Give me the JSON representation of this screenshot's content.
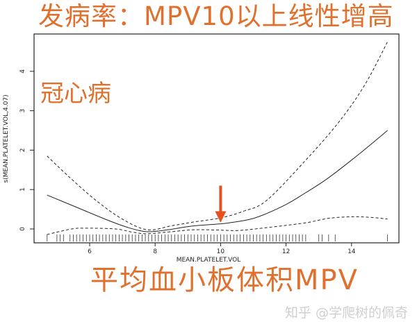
{
  "overlay": {
    "title": "发病率：MPV10以上线性增高",
    "y_note": "冠心病",
    "x_note": "平均血小板体积MPV",
    "watermark": "知乎 @学爬树的佩奇",
    "accent_color": "#E0702E",
    "arrow_color": "#E8501E",
    "arrow_at_x": 10
  },
  "chart_data": {
    "type": "line",
    "title": "",
    "xlabel": "MEAN.PLATELET.VOL",
    "ylabel": "s(MEAN.PLATELET.VOL,4.07)",
    "xlim": [
      4.4,
      15.6
    ],
    "ylim": [
      -0.35,
      4.95
    ],
    "xticks": [
      6,
      8,
      10,
      12,
      14
    ],
    "yticks": [
      0,
      1,
      2,
      3,
      4
    ],
    "grid": false,
    "series": [
      {
        "style": "solid",
        "x": [
          4.7,
          5.6,
          6.56,
          7.2,
          7.76,
          8.4,
          9.1,
          10.0,
          10.3,
          11.05,
          11.95,
          12.6,
          13.3,
          14.2,
          15.1
        ],
        "y": [
          0.86,
          0.55,
          0.22,
          0.03,
          -0.07,
          -0.02,
          0.07,
          0.13,
          0.16,
          0.28,
          0.6,
          0.92,
          1.3,
          1.88,
          2.5
        ]
      },
      {
        "style": "dashed",
        "x": [
          4.7,
          5.4,
          6.2,
          7.0,
          7.76,
          8.5,
          9.2,
          10.0,
          10.7,
          11.4,
          12.55,
          13.6,
          14.4,
          15.1
        ],
        "y": [
          1.85,
          1.3,
          0.72,
          0.25,
          -0.02,
          0.08,
          0.18,
          0.28,
          0.45,
          0.72,
          1.7,
          2.7,
          3.65,
          4.75
        ]
      },
      {
        "style": "dashed",
        "x": [
          4.7,
          5.45,
          5.9,
          6.8,
          7.3,
          7.76,
          8.5,
          9.2,
          10.0,
          10.5,
          11.05,
          12.55,
          13.3,
          14.05,
          14.65,
          15.1
        ],
        "y": [
          -0.14,
          0.0,
          0.02,
          0.0,
          -0.08,
          -0.12,
          -0.07,
          -0.02,
          -0.03,
          -0.04,
          0.0,
          0.15,
          0.27,
          0.31,
          0.29,
          0.25
        ]
      }
    ],
    "rug": [
      4.7,
      5.0,
      5.1,
      5.2,
      5.4,
      5.5,
      5.6,
      5.7,
      5.8,
      5.9,
      6.0,
      6.1,
      6.2,
      6.3,
      6.4,
      6.5,
      6.6,
      6.7,
      6.8,
      6.9,
      7.0,
      7.1,
      7.2,
      7.3,
      7.4,
      7.5,
      7.6,
      7.7,
      7.8,
      7.9,
      8.0,
      8.1,
      8.2,
      8.3,
      8.4,
      8.5,
      8.6,
      8.7,
      8.8,
      8.9,
      9.0,
      9.1,
      9.2,
      9.3,
      9.4,
      9.5,
      9.6,
      9.7,
      9.8,
      9.9,
      10.0,
      10.1,
      10.2,
      10.3,
      10.4,
      10.5,
      10.6,
      10.7,
      10.8,
      10.9,
      11.0,
      11.1,
      11.2,
      11.3,
      11.4,
      11.5,
      11.6,
      11.7,
      11.8,
      11.9,
      12.0,
      12.1,
      12.2,
      12.3,
      12.4,
      12.5,
      12.6,
      13.0,
      13.1,
      13.3,
      13.5,
      15.1
    ]
  }
}
